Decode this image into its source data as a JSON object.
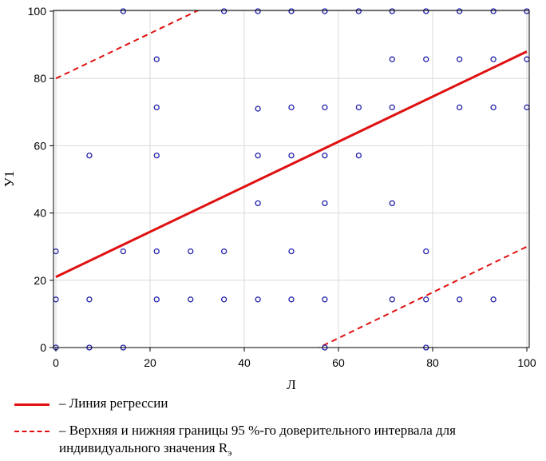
{
  "chart_data": {
    "type": "scatter",
    "xlabel": "Л",
    "ylabel": "У1",
    "xlim": [
      0,
      100
    ],
    "ylim": [
      0,
      100
    ],
    "x_ticks": [
      0,
      20,
      40,
      60,
      80,
      100
    ],
    "y_ticks": [
      0,
      20,
      40,
      60,
      80,
      100
    ],
    "grid": true,
    "colors": {
      "points": "#1f1fa8",
      "regression": "#e01010",
      "interval": "#e01010",
      "grid": "#d9d9d9"
    },
    "points": [
      {
        "x": 0,
        "y": 0
      },
      {
        "x": 7.1,
        "y": 0
      },
      {
        "x": 14.3,
        "y": 0
      },
      {
        "x": 57.1,
        "y": 0
      },
      {
        "x": 78.6,
        "y": 0
      },
      {
        "x": 0,
        "y": 14.3
      },
      {
        "x": 7.1,
        "y": 14.3
      },
      {
        "x": 21.4,
        "y": 14.3
      },
      {
        "x": 28.6,
        "y": 14.3
      },
      {
        "x": 35.7,
        "y": 14.3
      },
      {
        "x": 42.9,
        "y": 14.3
      },
      {
        "x": 50,
        "y": 14.3
      },
      {
        "x": 57.1,
        "y": 14.3
      },
      {
        "x": 71.4,
        "y": 14.3
      },
      {
        "x": 78.6,
        "y": 14.3
      },
      {
        "x": 85.7,
        "y": 14.3
      },
      {
        "x": 92.9,
        "y": 14.3
      },
      {
        "x": 0,
        "y": 28.6
      },
      {
        "x": 14.3,
        "y": 28.6
      },
      {
        "x": 21.4,
        "y": 28.6
      },
      {
        "x": 28.6,
        "y": 28.6
      },
      {
        "x": 35.7,
        "y": 28.6
      },
      {
        "x": 50,
        "y": 28.6
      },
      {
        "x": 78.6,
        "y": 28.6
      },
      {
        "x": 42.9,
        "y": 42.9
      },
      {
        "x": 57.1,
        "y": 42.9
      },
      {
        "x": 71.4,
        "y": 42.9
      },
      {
        "x": 7.1,
        "y": 57.1
      },
      {
        "x": 21.4,
        "y": 57.1
      },
      {
        "x": 42.9,
        "y": 57.1
      },
      {
        "x": 50,
        "y": 57.1
      },
      {
        "x": 57.1,
        "y": 57.1
      },
      {
        "x": 64.3,
        "y": 57.1
      },
      {
        "x": 21.4,
        "y": 71.4
      },
      {
        "x": 42.9,
        "y": 71.0
      },
      {
        "x": 50,
        "y": 71.4
      },
      {
        "x": 57.1,
        "y": 71.4
      },
      {
        "x": 64.3,
        "y": 71.4
      },
      {
        "x": 71.4,
        "y": 71.4
      },
      {
        "x": 85.7,
        "y": 71.4
      },
      {
        "x": 92.9,
        "y": 71.4
      },
      {
        "x": 100,
        "y": 71.4
      },
      {
        "x": 21.4,
        "y": 85.7
      },
      {
        "x": 71.4,
        "y": 85.7
      },
      {
        "x": 78.6,
        "y": 85.7
      },
      {
        "x": 85.7,
        "y": 85.7
      },
      {
        "x": 92.9,
        "y": 85.7
      },
      {
        "x": 100,
        "y": 85.7
      },
      {
        "x": 14.3,
        "y": 100
      },
      {
        "x": 35.7,
        "y": 100
      },
      {
        "x": 42.9,
        "y": 100
      },
      {
        "x": 50,
        "y": 100
      },
      {
        "x": 57.1,
        "y": 100
      },
      {
        "x": 64.3,
        "y": 100
      },
      {
        "x": 71.4,
        "y": 100
      },
      {
        "x": 78.6,
        "y": 100
      },
      {
        "x": 85.7,
        "y": 100
      },
      {
        "x": 92.9,
        "y": 100
      },
      {
        "x": 100,
        "y": 100
      }
    ],
    "regression_line": {
      "intercept": 21,
      "slope": 0.67
    },
    "interval_upper": {
      "intercept": 80,
      "slope": 0.67
    },
    "interval_lower": {
      "intercept": -38,
      "slope": 0.68
    }
  },
  "legend": {
    "regression_label": "– Линия регрессии",
    "interval_label_line1": "– Верхняя и нижняя границы 95 %-го доверительного интервала для",
    "interval_label_line2_main": "индивидуального значения R",
    "interval_label_line2_sub": "э"
  }
}
